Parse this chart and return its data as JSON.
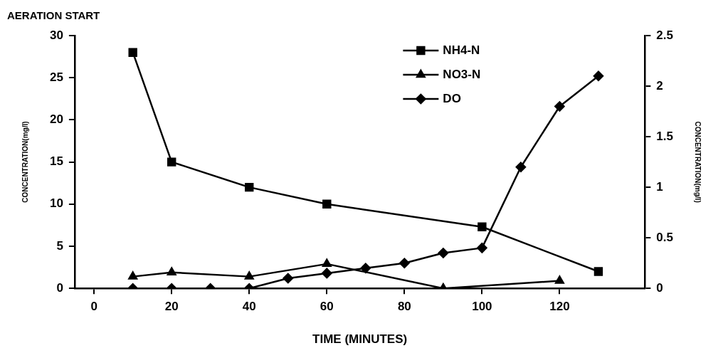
{
  "chart_data": {
    "type": "line",
    "title": "AERATION START",
    "xlabel": "TIME (MINUTES)",
    "ylabel": "CONCENTRATION(mg/l)",
    "y2label": "CONCENTRATION(mg/l)",
    "xlim": [
      -5,
      142
    ],
    "xticks": [
      0,
      20,
      40,
      60,
      80,
      100,
      120
    ],
    "ylim": [
      0,
      30
    ],
    "yticks": [
      0,
      5,
      10,
      15,
      20,
      25,
      30
    ],
    "y2lim": [
      0,
      2.5
    ],
    "y2ticks": [
      0,
      0.5,
      1,
      1.5,
      2,
      2.5
    ],
    "grid": false,
    "legend": "top right",
    "line_style": "solid",
    "series": [
      {
        "name": "NH4-N",
        "color": "#000000",
        "marker": "square",
        "x": [
          10,
          20,
          40,
          60,
          100,
          130
        ],
        "values": [
          28,
          15,
          12,
          10,
          7.3,
          2
        ]
      },
      {
        "name": "NO3-N",
        "color": "#000000",
        "marker": "triangle",
        "x": [
          10,
          20,
          40,
          60,
          90,
          120
        ],
        "values": [
          1.4,
          1.9,
          1.4,
          2.9,
          0,
          0.9
        ]
      },
      {
        "name": "DO",
        "color": "#000000",
        "marker": "diamond",
        "axis": "y2",
        "x": [
          10,
          20,
          30,
          40,
          50,
          60,
          70,
          80,
          90,
          100,
          110,
          120,
          130
        ],
        "values": [
          0,
          0,
          0,
          0,
          0.1,
          0.15,
          0.2,
          0.25,
          0.35,
          0.4,
          1.2,
          1.8,
          2.1
        ]
      }
    ]
  }
}
